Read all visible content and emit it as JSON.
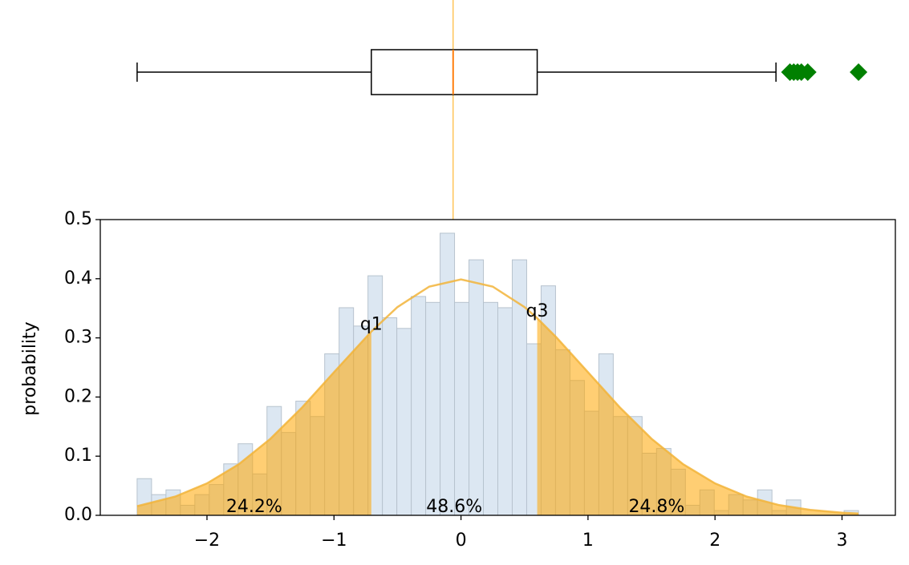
{
  "chart_data": [
    {
      "type": "box",
      "xlim": [
        -2.84,
        3.42
      ],
      "whisker_low": -2.55,
      "q1": -0.706,
      "median": -0.062,
      "q3": 0.6,
      "whisker_high": 2.48,
      "outliers": [
        2.59,
        2.62,
        2.65,
        2.68,
        2.73,
        3.13
      ],
      "box_color": "#000000",
      "median_color": "#ff7f0e",
      "outlier_color": "#008000",
      "guide_color": "#ffb833"
    },
    {
      "type": "histogram",
      "ylabel": "probability",
      "xlim": [
        -2.84,
        3.42
      ],
      "ylim": [
        0,
        0.5
      ],
      "xticks": [
        {
          "value": -2,
          "label": "−2"
        },
        {
          "value": -1,
          "label": "−1"
        },
        0,
        1,
        2,
        3
      ],
      "yticks": [
        {
          "value": 0,
          "label": "0.0"
        },
        0.1,
        0.2,
        0.3,
        0.4,
        0.5
      ],
      "bins": [
        -2.55,
        -2.4364,
        -2.3228,
        -2.2092,
        -2.0956,
        -1.982,
        -1.8684,
        -1.7548,
        -1.6412,
        -1.5276,
        -1.414,
        -1.3004,
        -1.1868,
        -1.0732,
        -0.9596,
        -0.846,
        -0.7324,
        -0.6188,
        -0.5052,
        -0.3916,
        -0.278,
        -0.1644,
        -0.0508,
        0.0628,
        0.1764,
        0.29,
        0.4036,
        0.5172,
        0.6308,
        0.7444,
        0.858,
        0.9716,
        1.0852,
        1.1988,
        1.3124,
        1.426,
        1.5396,
        1.6532,
        1.7668,
        1.8804,
        1.994,
        2.1076,
        2.2212,
        2.3348,
        2.4484,
        2.562,
        2.6756,
        2.7892,
        2.9028,
        3.0164,
        3.13
      ],
      "values": [
        0.062,
        0.035,
        0.043,
        0.017,
        0.035,
        0.052,
        0.087,
        0.121,
        0.07,
        0.184,
        0.14,
        0.193,
        0.167,
        0.273,
        0.351,
        0.32,
        0.405,
        0.334,
        0.316,
        0.37,
        0.36,
        0.477,
        0.36,
        0.432,
        0.36,
        0.351,
        0.432,
        0.29,
        0.388,
        0.28,
        0.228,
        0.176,
        0.273,
        0.167,
        0.167,
        0.105,
        0.113,
        0.078,
        0.017,
        0.043,
        0.008,
        0.035,
        0.026,
        0.043,
        0.008,
        0.026,
        0,
        0,
        0,
        0.008
      ],
      "bar_color": "#dce7f2",
      "bar_edge": "#b7c3ce",
      "curve": {
        "x": [
          -2.55,
          -2.25,
          -2,
          -1.75,
          -1.5,
          -1.25,
          -1,
          -0.706,
          -0.5,
          -0.25,
          0,
          0.25,
          0.5,
          0.6,
          0.75,
          1,
          1.25,
          1.5,
          1.75,
          2,
          2.25,
          2.5,
          2.75,
          3,
          3.13
        ],
        "values": [
          0.0154,
          0.0317,
          0.054,
          0.0863,
          0.1295,
          0.1826,
          0.242,
          0.3107,
          0.3521,
          0.3867,
          0.3989,
          0.3867,
          0.3521,
          0.3332,
          0.3011,
          0.242,
          0.1826,
          0.1295,
          0.0863,
          0.054,
          0.0317,
          0.0175,
          0.0091,
          0.0044,
          0.003
        ],
        "color": "#f2b43a",
        "fill": "#ffa500"
      },
      "quartile_labels": [
        "q1",
        "q3"
      ],
      "region_labels": [
        "24.2%",
        "48.6%",
        "24.8%"
      ]
    }
  ]
}
